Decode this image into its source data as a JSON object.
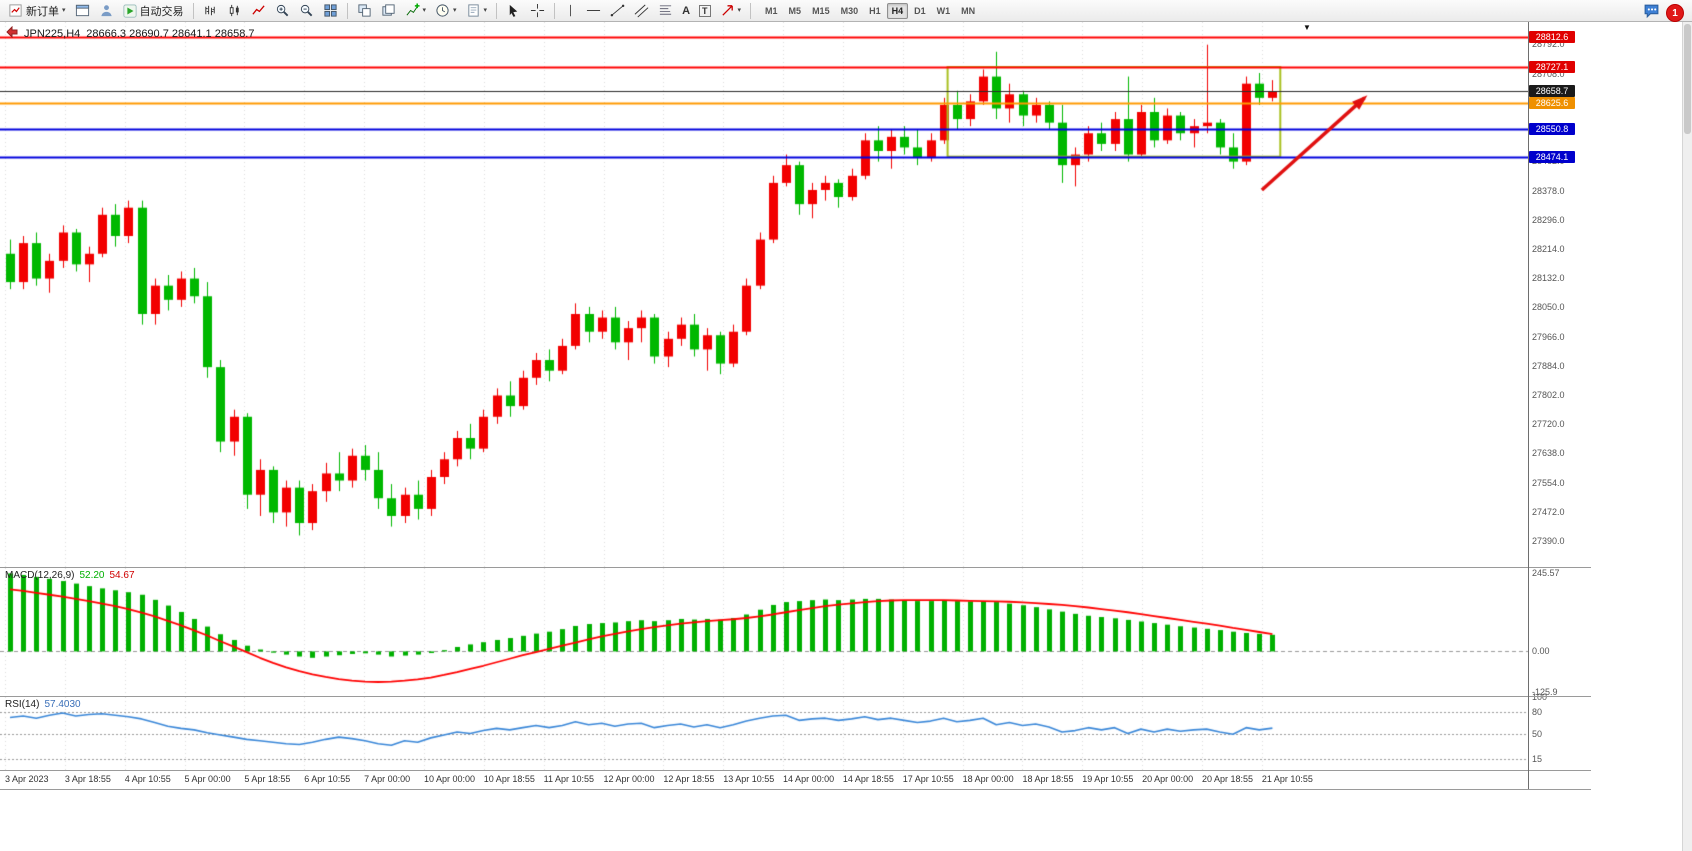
{
  "window": {
    "notification_badge": "1"
  },
  "toolbar": {
    "new_order_label": "新订单",
    "autotrading_label": "自动交易",
    "timeframes": [
      "M1",
      "M5",
      "M15",
      "M30",
      "H1",
      "H4",
      "D1",
      "W1",
      "MN"
    ],
    "active_timeframe": "H4"
  },
  "chart": {
    "symbol_period": "JPN225,H4",
    "ohlc_text": "28666.3 28690.7 28641.1 28658.7",
    "time_labels": [
      "3 Apr 2023",
      "3 Apr 18:55",
      "4 Apr 10:55",
      "5 Apr 00:00",
      "5 Apr 18:55",
      "6 Apr 10:55",
      "7 Apr 00:00",
      "10 Apr 00:00",
      "10 Apr 18:55",
      "11 Apr 10:55",
      "12 Apr 00:00",
      "12 Apr 18:55",
      "13 Apr 10:55",
      "14 Apr 00:00",
      "14 Apr 18:55",
      "17 Apr 10:55",
      "18 Apr 00:00",
      "18 Apr 18:55",
      "19 Apr 10:55",
      "20 Apr 00:00",
      "20 Apr 18:55",
      "21 Apr 10:55"
    ]
  },
  "chart_data": [
    {
      "id": "price",
      "type": "candlestick",
      "title": "JPN225,H4",
      "ohlc": {
        "open": "28666.3",
        "high": "28690.7",
        "low": "28641.1",
        "close": "28658.7"
      },
      "ylim": [
        27316,
        28854
      ],
      "up_color": "#f20000",
      "down_color": "#00b800",
      "scale_labels": [
        "28792.0",
        "28708.0",
        "28462.0",
        "28378.0",
        "28296.0",
        "28214.0",
        "28132.0",
        "28050.0",
        "27966.0",
        "27884.0",
        "27802.0",
        "27720.0",
        "27638.0",
        "27554.0",
        "27472.0",
        "27390.0"
      ],
      "hlines": [
        {
          "price": 28812.6,
          "label": "28812.6",
          "color": "#ff0000",
          "label_bg": "#e00000",
          "width": 2
        },
        {
          "price": 28727.1,
          "label": "28727.1",
          "color": "#ff0000",
          "label_bg": "#e00000",
          "width": 2
        },
        {
          "price": 28658.7,
          "label": "28658.7",
          "color": "#2a2a2a",
          "label_bg": "#1a1a1a",
          "width": 1
        },
        {
          "price": 28625.6,
          "label": "28625.6",
          "color": "#ff9900",
          "label_bg": "#ef9000",
          "width": 2
        },
        {
          "price": 28550.8,
          "label": "28550.8",
          "color": "#0000dd",
          "label_bg": "#0000cc",
          "width": 2
        },
        {
          "price": 28474.1,
          "label": "28474.1",
          "color": "#0000dd",
          "label_bg": "#0000cc",
          "width": 2
        }
      ],
      "box": {
        "x_start_index": 71.3,
        "x_end_index": 96.6,
        "price_top": 28727,
        "price_bottom": 28474,
        "color": "#a8c020"
      },
      "arrow": {
        "from_index": 95.2,
        "from_price": 28380,
        "to_index": 103.0,
        "to_price": 28640,
        "color": "#e01010"
      },
      "candles": [
        [
          28200,
          28240,
          28100,
          28120
        ],
        [
          28120,
          28250,
          28100,
          28230
        ],
        [
          28230,
          28260,
          28110,
          28130
        ],
        [
          28130,
          28200,
          28090,
          28180
        ],
        [
          28180,
          28280,
          28160,
          28260
        ],
        [
          28260,
          28270,
          28150,
          28170
        ],
        [
          28170,
          28220,
          28120,
          28200
        ],
        [
          28200,
          28330,
          28190,
          28310
        ],
        [
          28310,
          28340,
          28220,
          28250
        ],
        [
          28250,
          28350,
          28230,
          28330
        ],
        [
          28330,
          28350,
          28000,
          28030
        ],
        [
          28030,
          28130,
          28000,
          28110
        ],
        [
          28110,
          28140,
          28040,
          28070
        ],
        [
          28070,
          28150,
          28050,
          28130
        ],
        [
          28130,
          28160,
          28060,
          28080
        ],
        [
          28080,
          28120,
          27850,
          27880
        ],
        [
          27880,
          27900,
          27640,
          27670
        ],
        [
          27670,
          27760,
          27630,
          27740
        ],
        [
          27740,
          27750,
          27480,
          27520
        ],
        [
          27520,
          27620,
          27460,
          27590
        ],
        [
          27590,
          27600,
          27440,
          27470
        ],
        [
          27470,
          27560,
          27430,
          27540
        ],
        [
          27540,
          27560,
          27405,
          27440
        ],
        [
          27440,
          27550,
          27420,
          27530
        ],
        [
          27530,
          27610,
          27500,
          27580
        ],
        [
          27580,
          27640,
          27530,
          27560
        ],
        [
          27560,
          27650,
          27540,
          27630
        ],
        [
          27630,
          27660,
          27560,
          27590
        ],
        [
          27590,
          27640,
          27480,
          27510
        ],
        [
          27510,
          27550,
          27430,
          27460
        ],
        [
          27460,
          27540,
          27440,
          27520
        ],
        [
          27520,
          27560,
          27450,
          27480
        ],
        [
          27480,
          27590,
          27460,
          27570
        ],
        [
          27570,
          27640,
          27550,
          27620
        ],
        [
          27620,
          27700,
          27600,
          27680
        ],
        [
          27680,
          27720,
          27620,
          27650
        ],
        [
          27650,
          27760,
          27640,
          27740
        ],
        [
          27740,
          27820,
          27720,
          27800
        ],
        [
          27800,
          27840,
          27740,
          27770
        ],
        [
          27770,
          27870,
          27760,
          27850
        ],
        [
          27850,
          27920,
          27830,
          27900
        ],
        [
          27900,
          27930,
          27840,
          27870
        ],
        [
          27870,
          27960,
          27860,
          27940
        ],
        [
          27940,
          28060,
          27930,
          28030
        ],
        [
          28030,
          28050,
          27950,
          27980
        ],
        [
          27980,
          28040,
          27960,
          28020
        ],
        [
          28020,
          28050,
          27930,
          27950
        ],
        [
          27950,
          28010,
          27900,
          27990
        ],
        [
          27990,
          28040,
          27950,
          28020
        ],
        [
          28020,
          28030,
          27890,
          27910
        ],
        [
          27910,
          27980,
          27880,
          27960
        ],
        [
          27960,
          28020,
          27940,
          28000
        ],
        [
          28000,
          28030,
          27910,
          27930
        ],
        [
          27930,
          27990,
          27870,
          27970
        ],
        [
          27970,
          27980,
          27860,
          27890
        ],
        [
          27890,
          28000,
          27880,
          27980
        ],
        [
          27980,
          28130,
          27970,
          28110
        ],
        [
          28110,
          28260,
          28100,
          28240
        ],
        [
          28240,
          28420,
          28230,
          28400
        ],
        [
          28400,
          28480,
          28390,
          28450
        ],
        [
          28450,
          28460,
          28310,
          28340
        ],
        [
          28340,
          28400,
          28300,
          28380
        ],
        [
          28380,
          28420,
          28350,
          28400
        ],
        [
          28400,
          28410,
          28330,
          28360
        ],
        [
          28360,
          28440,
          28350,
          28420
        ],
        [
          28420,
          28540,
          28410,
          28520
        ],
        [
          28520,
          28560,
          28460,
          28490
        ],
        [
          28490,
          28550,
          28440,
          28530
        ],
        [
          28530,
          28560,
          28480,
          28500
        ],
        [
          28500,
          28550,
          28450,
          28470
        ],
        [
          28470,
          28540,
          28460,
          28520
        ],
        [
          28520,
          28640,
          28510,
          28620
        ],
        [
          28620,
          28660,
          28550,
          28580
        ],
        [
          28580,
          28650,
          28560,
          28630
        ],
        [
          28630,
          28720,
          28620,
          28700
        ],
        [
          28700,
          28770,
          28580,
          28610
        ],
        [
          28610,
          28680,
          28570,
          28650
        ],
        [
          28650,
          28660,
          28560,
          28590
        ],
        [
          28590,
          28640,
          28570,
          28620
        ],
        [
          28620,
          28630,
          28550,
          28570
        ],
        [
          28570,
          28620,
          28400,
          28450
        ],
        [
          28450,
          28500,
          28390,
          28480
        ],
        [
          28480,
          28560,
          28460,
          28540
        ],
        [
          28540,
          28570,
          28490,
          28510
        ],
        [
          28510,
          28600,
          28490,
          28580
        ],
        [
          28580,
          28700,
          28460,
          28480
        ],
        [
          28480,
          28620,
          28470,
          28600
        ],
        [
          28600,
          28640,
          28500,
          28520
        ],
        [
          28520,
          28610,
          28510,
          28590
        ],
        [
          28590,
          28600,
          28520,
          28540
        ],
        [
          28540,
          28580,
          28500,
          28560
        ],
        [
          28560,
          28790,
          28540,
          28570
        ],
        [
          28570,
          28580,
          28480,
          28500
        ],
        [
          28500,
          28540,
          28440,
          28460
        ],
        [
          28460,
          28700,
          28450,
          28680
        ],
        [
          28680,
          28710,
          28620,
          28640
        ],
        [
          28640,
          28690,
          28630,
          28658.7
        ]
      ]
    },
    {
      "id": "macd",
      "type": "macd",
      "title": "MACD(12,26,9)",
      "value_labels": [
        "52.20",
        "54.67"
      ],
      "ylim": [
        -140,
        262
      ],
      "scale_labels": [
        "245.57",
        "0.00",
        "-125.9"
      ],
      "histogram_color": "#00b000",
      "signal_color": "#ff0000",
      "histogram": [
        245,
        240,
        234,
        228,
        221,
        213,
        205,
        198,
        192,
        186,
        178,
        162,
        144,
        124,
        102,
        78,
        54,
        36,
        18,
        6,
        -4,
        -10,
        -16,
        -20,
        -16,
        -12,
        -8,
        -6,
        -10,
        -16,
        -13,
        -10,
        -5,
        4,
        14,
        22,
        29,
        36,
        42,
        49,
        56,
        62,
        70,
        80,
        86,
        89,
        91,
        95,
        98,
        95,
        98,
        102,
        100,
        102,
        100,
        105,
        116,
        131,
        146,
        155,
        158,
        161,
        163,
        161,
        163,
        165,
        165,
        163,
        160,
        158,
        158,
        160,
        158,
        157,
        158,
        155,
        150,
        145,
        139,
        132,
        125,
        118,
        112,
        108,
        104,
        99,
        94,
        89,
        84,
        79,
        75,
        71,
        67,
        62,
        58,
        55,
        52.2
      ],
      "signal": [
        195,
        190,
        184,
        178,
        172,
        165,
        158,
        150,
        142,
        133,
        122,
        110,
        96,
        82,
        66,
        50,
        32,
        15,
        -2,
        -20,
        -36,
        -50,
        -62,
        -72,
        -80,
        -87,
        -92,
        -95,
        -96,
        -95,
        -92,
        -88,
        -82,
        -74,
        -65,
        -55,
        -45,
        -34,
        -23,
        -12,
        -2,
        8,
        18,
        28,
        38,
        47,
        55,
        63,
        70,
        76,
        82,
        87,
        91,
        95,
        98,
        101,
        105,
        110,
        116,
        123,
        130,
        136,
        142,
        147,
        151,
        155,
        158,
        160,
        161,
        161,
        161,
        161,
        160,
        159,
        158,
        157,
        156,
        154,
        152,
        149,
        146,
        142,
        138,
        133,
        128,
        123,
        117,
        111,
        105,
        99,
        93,
        87,
        81,
        74,
        68,
        61,
        54.67
      ]
    },
    {
      "id": "rsi",
      "type": "rsi",
      "title": "RSI(14)",
      "value_label": "57.4030",
      "ylim": [
        0,
        100
      ],
      "levels": [
        80,
        50,
        15
      ],
      "scale_labels": [
        "100",
        "80",
        "50",
        "15"
      ],
      "line_color": "#3a87d8",
      "values": [
        72,
        74,
        71,
        75,
        78,
        74,
        76,
        77,
        75,
        73,
        70,
        65,
        60,
        57,
        55,
        51,
        48,
        45,
        42,
        40,
        38,
        36,
        35,
        38,
        42,
        45,
        43,
        40,
        36,
        34,
        40,
        38,
        44,
        48,
        52,
        50,
        54,
        57,
        55,
        58,
        61,
        58,
        61,
        66,
        62,
        64,
        60,
        63,
        64,
        58,
        61,
        63,
        59,
        62,
        58,
        62,
        67,
        71,
        74,
        75,
        68,
        70,
        71,
        68,
        70,
        73,
        69,
        71,
        68,
        65,
        67,
        71,
        66,
        68,
        71,
        62,
        65,
        61,
        63,
        59,
        52,
        54,
        58,
        55,
        58,
        50,
        56,
        52,
        56,
        53,
        55,
        56,
        52,
        49,
        58,
        55,
        57.4
      ]
    }
  ]
}
